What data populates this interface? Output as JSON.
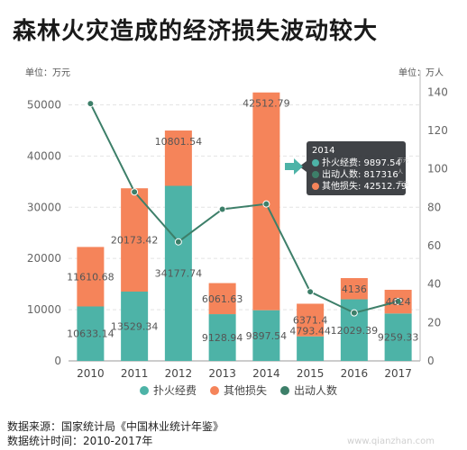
{
  "title": "森林火灾造成的经济损失波动较大",
  "left_unit": "单位：万元",
  "right_unit": "单位：万人",
  "colors": {
    "fire_cost": "#4db3a7",
    "other_loss": "#f5845a",
    "people": "#3d7f69",
    "tooltip_bg": "#2b2f33",
    "grid": "#e4e4e4",
    "axis_text": "#666666"
  },
  "chart_data": {
    "type": "bar",
    "stacked": true,
    "categories": [
      "2010",
      "2011",
      "2012",
      "2013",
      "2014",
      "2015",
      "2016",
      "2017"
    ],
    "series": [
      {
        "name": "扑火经费",
        "axis": "left",
        "values": [
          10633.14,
          13529.34,
          34177.74,
          9128.94,
          9897.54,
          4793.44,
          12029.39,
          9259.33
        ],
        "labels": [
          "10633.14",
          "13529.34",
          "34177.74",
          "9128.94",
          "9897.54",
          "4793.44",
          "12029.39",
          "9259.33"
        ]
      },
      {
        "name": "其他损失",
        "axis": "left",
        "values": [
          11610.68,
          20173.42,
          10801.54,
          6061.63,
          42512.79,
          6371.4,
          4136,
          4624
        ],
        "labels": [
          "11610.68",
          "20173.42",
          "10801.54",
          "6061.63",
          "42512.79",
          "6371.4",
          "4136",
          "4624"
        ]
      },
      {
        "name": "出动人数",
        "axis": "right",
        "type": "line",
        "values": [
          134,
          88,
          62,
          79,
          81.7,
          36,
          25,
          31
        ]
      }
    ],
    "yleft": {
      "min": 0,
      "max": 55000,
      "ticks": [
        "0",
        "10000",
        "20000",
        "30000",
        "40000",
        "50000"
      ],
      "tick_values": [
        0,
        10000,
        20000,
        30000,
        40000,
        50000
      ]
    },
    "yright": {
      "min": 0,
      "max": 146.7,
      "ticks": [
        "0",
        "20",
        "40",
        "60",
        "80",
        "100",
        "120",
        "140"
      ],
      "tick_values": [
        0,
        20,
        40,
        60,
        80,
        100,
        120,
        140
      ]
    },
    "legend": [
      "扑火经费",
      "其他损失",
      "出动人数"
    ],
    "legend_position": "bottom",
    "grid": true
  },
  "tooltip": {
    "category_index": 4,
    "title": "2014",
    "rows": [
      {
        "text": "扑火经费: 9897.54",
        "color": "#4db3a7"
      },
      {
        "text": "出动人数: 817316",
        "color": "#3d7f69"
      },
      {
        "text": "其他损失: 42512.79",
        "color": "#f5845a"
      }
    ],
    "side_labels": [
      "万元",
      "人",
      "万元"
    ]
  },
  "footer": {
    "line1": "数据来源：国家统计局《中国林业统计年鉴》",
    "line2": "数据统计时间：2010-2017年"
  },
  "watermark": "www.qianzhan.com"
}
